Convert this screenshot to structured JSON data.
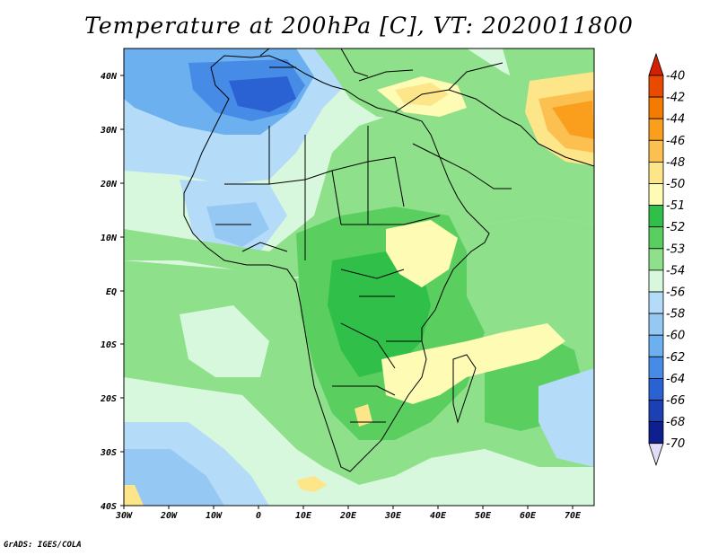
{
  "title": "Temperature at 200hPa [C], VT: 2020011800",
  "footer": "GrADS: IGES/COLA",
  "map": {
    "lon_range": [
      -30,
      75
    ],
    "lat_range": [
      -40,
      45
    ],
    "lon_ticks": [
      "30W",
      "20W",
      "10W",
      "0",
      "10E",
      "20E",
      "30E",
      "40E",
      "50E",
      "60E",
      "70E"
    ],
    "lat_ticks": [
      "40S",
      "30S",
      "20S",
      "10S",
      "EQ",
      "10N",
      "20N",
      "30N",
      "40N"
    ]
  },
  "colorbar": {
    "levels": [
      "-40",
      "-42",
      "-44",
      "-46",
      "-48",
      "-50",
      "-51",
      "-52",
      "-53",
      "-54",
      "-56",
      "-58",
      "-60",
      "-62",
      "-64",
      "-66",
      "-68",
      "-70"
    ],
    "colors": {
      "over": "#d42000",
      "bands": [
        "#e84a00",
        "#f47a00",
        "#fa9e1e",
        "#fcc050",
        "#fde58a",
        "#fefbb4",
        "#30c04a",
        "#5acf60",
        "#8ee08a",
        "#d8f8de",
        "#b4dcf8",
        "#96c8f4",
        "#6cb0f0",
        "#468ce6",
        "#2a62d4",
        "#1b40b4",
        "#0e2090"
      ],
      "under": "#e2dcf8"
    }
  }
}
